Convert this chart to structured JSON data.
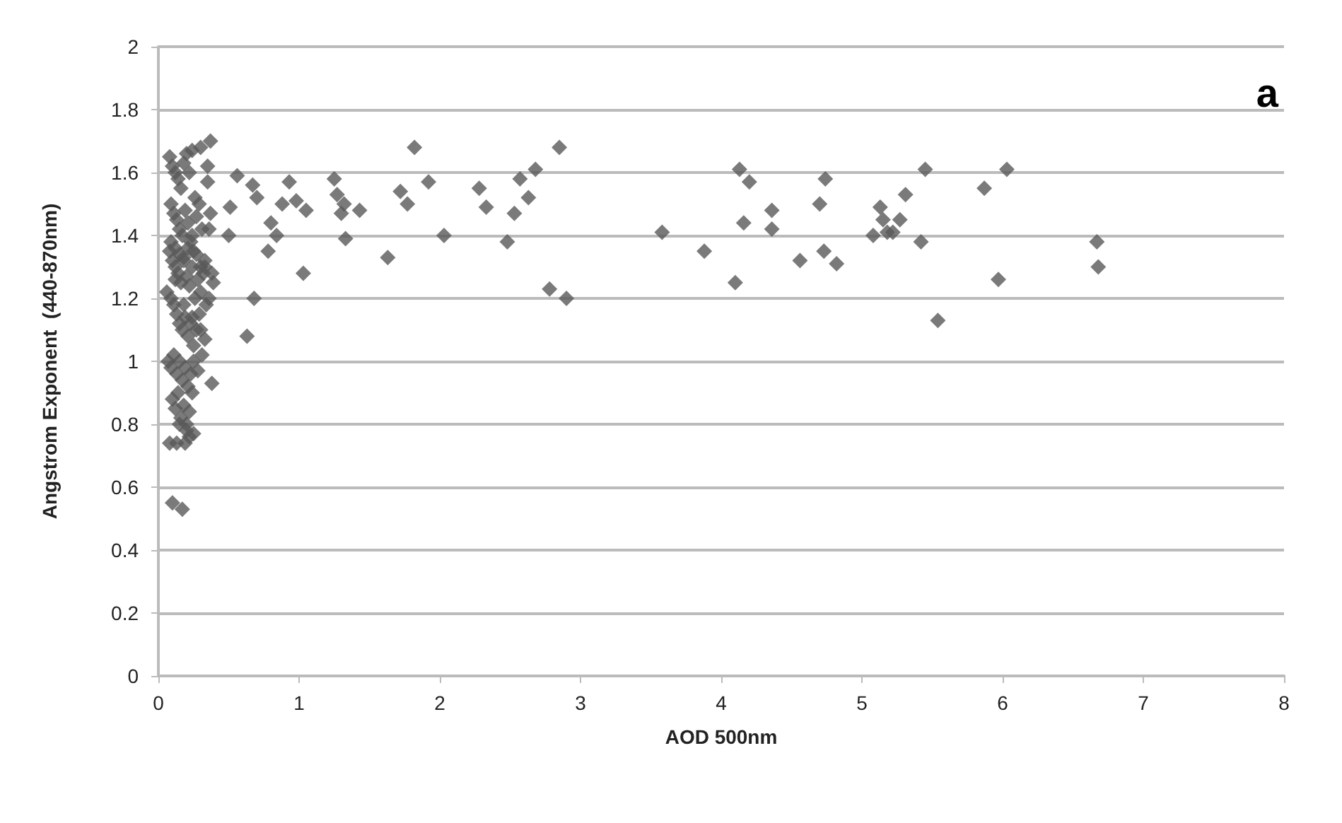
{
  "chart_data": {
    "type": "scatter",
    "xlabel": "AOD 500nm",
    "ylabel": "Angstrom Exponent  (440-870nm)",
    "annotations": [
      "a"
    ],
    "xlim": [
      0,
      8
    ],
    "xticks": [
      0,
      1,
      2,
      3,
      4,
      5,
      6,
      7,
      8
    ],
    "ylim": [
      0,
      2
    ],
    "yticks": [
      0,
      0.2,
      0.4,
      0.6,
      0.8,
      1,
      1.2,
      1.4,
      1.6,
      1.8,
      2
    ],
    "grid": "y",
    "marker": "diamond",
    "series": [
      {
        "color": "#595959",
        "x": [
          0.1,
          0.17,
          0.08,
          0.13,
          0.19,
          0.22,
          0.25,
          0.38,
          0.33,
          0.37,
          0.3,
          0.35,
          0.35,
          0.37,
          0.38,
          0.39,
          0.08,
          0.1,
          0.12,
          0.14,
          0.16,
          0.18,
          0.2,
          0.22,
          0.24,
          0.26,
          0.09,
          0.11,
          0.13,
          0.15,
          0.17,
          0.19,
          0.21,
          0.23,
          0.25,
          0.27,
          0.29,
          0.31,
          0.33,
          0.08,
          0.1,
          0.12,
          0.14,
          0.16,
          0.18,
          0.2,
          0.22,
          0.24,
          0.26,
          0.28,
          0.3,
          0.32,
          0.34,
          0.09,
          0.11,
          0.13,
          0.15,
          0.17,
          0.19,
          0.21,
          0.23,
          0.25,
          0.27,
          0.29,
          0.31,
          0.36,
          0.07,
          0.09,
          0.11,
          0.13,
          0.15,
          0.17,
          0.19,
          0.21,
          0.23,
          0.25,
          0.28,
          0.1,
          0.12,
          0.14,
          0.16,
          0.18,
          0.2,
          0.22,
          0.24,
          0.06,
          0.09,
          0.12,
          0.15,
          0.18,
          0.21,
          0.24,
          0.27,
          0.3,
          0.33,
          0.36,
          0.12,
          0.18,
          0.24,
          0.3,
          0.15,
          0.2,
          0.56,
          0.51,
          0.5,
          0.67,
          0.7,
          0.68,
          0.63,
          0.78,
          0.8,
          0.84,
          0.88,
          0.93,
          0.98,
          1.05,
          1.03,
          1.25,
          1.27,
          1.3,
          1.32,
          1.33,
          1.43,
          1.63,
          1.72,
          1.77,
          1.82,
          1.92,
          2.03,
          2.28,
          2.33,
          2.48,
          2.53,
          2.57,
          2.63,
          2.68,
          2.78,
          2.85,
          2.9,
          3.58,
          3.88,
          4.1,
          4.13,
          4.16,
          4.2,
          4.36,
          4.36,
          4.56,
          4.7,
          4.73,
          4.74,
          4.82,
          5.08,
          5.13,
          5.15,
          5.18,
          5.22,
          5.27,
          5.31,
          5.42,
          5.45,
          5.54,
          5.87,
          5.97,
          6.03,
          6.67,
          6.68
        ],
        "values": [
          0.55,
          0.53,
          0.74,
          0.74,
          0.74,
          0.76,
          0.77,
          0.93,
          1.07,
          1.7,
          1.68,
          1.62,
          1.57,
          1.47,
          1.28,
          1.25,
          1.65,
          1.62,
          1.6,
          1.58,
          1.55,
          1.63,
          1.66,
          1.6,
          1.67,
          1.52,
          1.5,
          1.47,
          1.45,
          1.42,
          1.4,
          1.48,
          1.44,
          1.38,
          1.35,
          1.46,
          1.5,
          1.42,
          1.3,
          1.35,
          1.32,
          1.3,
          1.28,
          1.25,
          1.33,
          1.27,
          1.24,
          1.3,
          1.2,
          1.26,
          1.22,
          1.28,
          1.18,
          1.2,
          1.18,
          1.15,
          1.12,
          1.1,
          1.14,
          1.08,
          1.12,
          1.05,
          1.1,
          1.15,
          1.02,
          1.2,
          1.0,
          0.98,
          1.02,
          0.96,
          1.0,
          0.94,
          0.98,
          0.92,
          0.96,
          1.0,
          0.97,
          0.88,
          0.85,
          0.9,
          0.82,
          0.86,
          0.8,
          0.84,
          0.9,
          1.22,
          1.38,
          1.36,
          1.34,
          1.32,
          1.36,
          1.4,
          1.34,
          1.3,
          1.32,
          1.42,
          1.26,
          1.18,
          1.14,
          1.1,
          0.8,
          0.78,
          1.59,
          1.49,
          1.4,
          1.56,
          1.52,
          1.2,
          1.08,
          1.35,
          1.44,
          1.4,
          1.5,
          1.57,
          1.51,
          1.48,
          1.28,
          1.58,
          1.53,
          1.47,
          1.5,
          1.39,
          1.48,
          1.33,
          1.54,
          1.5,
          1.68,
          1.57,
          1.4,
          1.55,
          1.49,
          1.38,
          1.47,
          1.58,
          1.52,
          1.61,
          1.23,
          1.68,
          1.2,
          1.41,
          1.35,
          1.25,
          1.61,
          1.44,
          1.57,
          1.48,
          1.42,
          1.32,
          1.5,
          1.35,
          1.58,
          1.31,
          1.4,
          1.49,
          1.45,
          1.41,
          1.41,
          1.45,
          1.53,
          1.38,
          1.61,
          1.13,
          1.55,
          1.26,
          1.61,
          1.38,
          1.3
        ]
      }
    ]
  }
}
